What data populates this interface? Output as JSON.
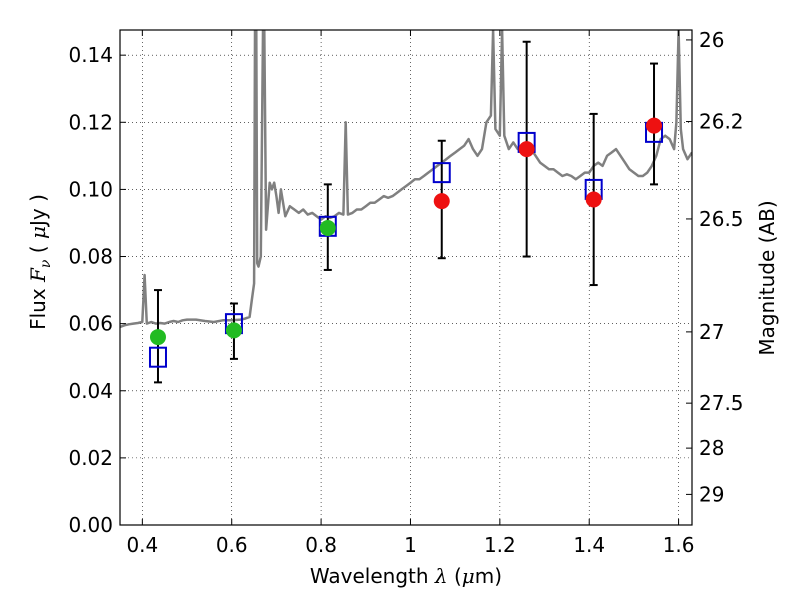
{
  "chart_data": {
    "type": "scatter",
    "title": "",
    "xlabel": "Wavelength",
    "xlabel_symbol": "λ",
    "xlabel_unit_open": "(",
    "xlabel_unit_mu": "μ",
    "xlabel_unit_rest": "m)",
    "ylabel": "Flux",
    "ylabel_symbol": "F",
    "ylabel_sub": "ν",
    "ylabel_unit_open": "(",
    "ylabel_unit_mu": "μ",
    "ylabel_unit_rest": "Jy )",
    "y2label": "Magnitude (AB)",
    "xlim": [
      0.35,
      1.63
    ],
    "ylim": [
      0.0,
      0.1475
    ],
    "grid": true,
    "xticks": [
      {
        "value": 0.4,
        "label": "0.4"
      },
      {
        "value": 0.6,
        "label": "0.6"
      },
      {
        "value": 0.8,
        "label": "0.8"
      },
      {
        "value": 1.0,
        "label": "1"
      },
      {
        "value": 1.2,
        "label": "1.2"
      },
      {
        "value": 1.4,
        "label": "1.4"
      },
      {
        "value": 1.6,
        "label": "1.6"
      }
    ],
    "yticks": [
      {
        "value": 0.0,
        "label": "0.00"
      },
      {
        "value": 0.02,
        "label": "0.02"
      },
      {
        "value": 0.04,
        "label": "0.04"
      },
      {
        "value": 0.06,
        "label": "0.06"
      },
      {
        "value": 0.08,
        "label": "0.08"
      },
      {
        "value": 0.1,
        "label": "0.10"
      },
      {
        "value": 0.12,
        "label": "0.12"
      },
      {
        "value": 0.14,
        "label": "0.14"
      }
    ],
    "y2ticks": [
      {
        "value": 26,
        "label": "26"
      },
      {
        "value": 26.2,
        "label": "26.2"
      },
      {
        "value": 26.5,
        "label": "26.5"
      },
      {
        "value": 27,
        "label": "27"
      },
      {
        "value": 27.5,
        "label": "27.5"
      },
      {
        "value": 28,
        "label": "28"
      },
      {
        "value": 29,
        "label": "29"
      }
    ],
    "colors": {
      "template": "#808080",
      "model": "#0000cc",
      "green": "#22bb22",
      "red": "#ee1111",
      "errorbar": "#000000"
    },
    "template_spectrum": [
      [
        0.35,
        0.059
      ],
      [
        0.36,
        0.0595
      ],
      [
        0.37,
        0.0598
      ],
      [
        0.38,
        0.06
      ],
      [
        0.39,
        0.0602
      ],
      [
        0.4,
        0.0605
      ],
      [
        0.405,
        0.0745
      ],
      [
        0.41,
        0.06
      ],
      [
        0.42,
        0.0605
      ],
      [
        0.43,
        0.06
      ],
      [
        0.44,
        0.0602
      ],
      [
        0.45,
        0.06
      ],
      [
        0.46,
        0.0605
      ],
      [
        0.47,
        0.0608
      ],
      [
        0.48,
        0.0605
      ],
      [
        0.49,
        0.061
      ],
      [
        0.5,
        0.0612
      ],
      [
        0.52,
        0.0612
      ],
      [
        0.54,
        0.0608
      ],
      [
        0.56,
        0.0605
      ],
      [
        0.58,
        0.061
      ],
      [
        0.6,
        0.061
      ],
      [
        0.62,
        0.0612
      ],
      [
        0.63,
        0.0615
      ],
      [
        0.64,
        0.062
      ],
      [
        0.645,
        0.067
      ],
      [
        0.65,
        0.072
      ],
      [
        0.652,
        0.1475
      ],
      [
        0.655,
        0.1475
      ],
      [
        0.657,
        0.078
      ],
      [
        0.66,
        0.077
      ],
      [
        0.665,
        0.08
      ],
      [
        0.67,
        0.1475
      ],
      [
        0.673,
        0.1475
      ],
      [
        0.677,
        0.088
      ],
      [
        0.685,
        0.102
      ],
      [
        0.69,
        0.1
      ],
      [
        0.695,
        0.102
      ],
      [
        0.7,
        0.098
      ],
      [
        0.705,
        0.093
      ],
      [
        0.71,
        0.1
      ],
      [
        0.72,
        0.092
      ],
      [
        0.73,
        0.095
      ],
      [
        0.74,
        0.094
      ],
      [
        0.75,
        0.093
      ],
      [
        0.76,
        0.094
      ],
      [
        0.77,
        0.0925
      ],
      [
        0.78,
        0.093
      ],
      [
        0.79,
        0.092
      ],
      [
        0.8,
        0.091
      ],
      [
        0.81,
        0.092
      ],
      [
        0.82,
        0.0915
      ],
      [
        0.83,
        0.092
      ],
      [
        0.84,
        0.093
      ],
      [
        0.85,
        0.0925
      ],
      [
        0.855,
        0.12
      ],
      [
        0.86,
        0.0925
      ],
      [
        0.87,
        0.093
      ],
      [
        0.88,
        0.094
      ],
      [
        0.89,
        0.094
      ],
      [
        0.9,
        0.095
      ],
      [
        0.91,
        0.096
      ],
      [
        0.92,
        0.096
      ],
      [
        0.93,
        0.097
      ],
      [
        0.94,
        0.098
      ],
      [
        0.95,
        0.0975
      ],
      [
        0.96,
        0.098
      ],
      [
        0.97,
        0.099
      ],
      [
        0.98,
        0.1
      ],
      [
        0.99,
        0.101
      ],
      [
        1.0,
        0.102
      ],
      [
        1.01,
        0.103
      ],
      [
        1.02,
        0.103
      ],
      [
        1.03,
        0.104
      ],
      [
        1.04,
        0.105
      ],
      [
        1.05,
        0.106
      ],
      [
        1.06,
        0.107
      ],
      [
        1.07,
        0.108
      ],
      [
        1.08,
        0.109
      ],
      [
        1.09,
        0.11
      ],
      [
        1.1,
        0.111
      ],
      [
        1.11,
        0.112
      ],
      [
        1.12,
        0.113
      ],
      [
        1.13,
        0.115
      ],
      [
        1.14,
        0.112
      ],
      [
        1.15,
        0.11
      ],
      [
        1.16,
        0.112
      ],
      [
        1.17,
        0.12
      ],
      [
        1.18,
        0.122
      ],
      [
        1.185,
        0.1475
      ],
      [
        1.19,
        0.118
      ],
      [
        1.2,
        0.116
      ],
      [
        1.205,
        0.1475
      ],
      [
        1.21,
        0.116
      ],
      [
        1.22,
        0.112
      ],
      [
        1.23,
        0.114
      ],
      [
        1.24,
        0.112
      ],
      [
        1.25,
        0.112
      ],
      [
        1.26,
        0.113
      ],
      [
        1.27,
        0.112
      ],
      [
        1.28,
        0.11
      ],
      [
        1.29,
        0.108
      ],
      [
        1.3,
        0.107
      ],
      [
        1.31,
        0.106
      ],
      [
        1.32,
        0.106
      ],
      [
        1.33,
        0.105
      ],
      [
        1.34,
        0.104
      ],
      [
        1.35,
        0.1045
      ],
      [
        1.36,
        0.104
      ],
      [
        1.37,
        0.103
      ],
      [
        1.38,
        0.104
      ],
      [
        1.39,
        0.105
      ],
      [
        1.4,
        0.105
      ],
      [
        1.41,
        0.107
      ],
      [
        1.42,
        0.108
      ],
      [
        1.43,
        0.107
      ],
      [
        1.44,
        0.11
      ],
      [
        1.45,
        0.111
      ],
      [
        1.46,
        0.112
      ],
      [
        1.47,
        0.11
      ],
      [
        1.48,
        0.108
      ],
      [
        1.49,
        0.106
      ],
      [
        1.5,
        0.105
      ],
      [
        1.51,
        0.104
      ],
      [
        1.52,
        0.104
      ],
      [
        1.53,
        0.105
      ],
      [
        1.54,
        0.107
      ],
      [
        1.55,
        0.11
      ],
      [
        1.56,
        0.115
      ],
      [
        1.57,
        0.116
      ],
      [
        1.58,
        0.115
      ],
      [
        1.59,
        0.112
      ],
      [
        1.595,
        0.12
      ],
      [
        1.6,
        0.1475
      ],
      [
        1.605,
        0.118
      ],
      [
        1.61,
        0.112
      ],
      [
        1.62,
        0.109
      ],
      [
        1.63,
        0.111
      ]
    ],
    "model_points": [
      {
        "x": 0.435,
        "y": 0.05
      },
      {
        "x": 0.605,
        "y": 0.06
      },
      {
        "x": 0.815,
        "y": 0.089
      },
      {
        "x": 1.07,
        "y": 0.105
      },
      {
        "x": 1.26,
        "y": 0.114
      },
      {
        "x": 1.41,
        "y": 0.1
      },
      {
        "x": 1.545,
        "y": 0.117
      }
    ],
    "measured_points": [
      {
        "x": 0.435,
        "y": 0.056,
        "ylow": 0.0425,
        "yhigh": 0.07,
        "color": "green"
      },
      {
        "x": 0.605,
        "y": 0.058,
        "ylow": 0.0495,
        "yhigh": 0.066,
        "color": "green"
      },
      {
        "x": 0.815,
        "y": 0.0885,
        "ylow": 0.076,
        "yhigh": 0.1015,
        "color": "green"
      },
      {
        "x": 1.07,
        "y": 0.0965,
        "ylow": 0.0795,
        "yhigh": 0.1145,
        "color": "red"
      },
      {
        "x": 1.26,
        "y": 0.112,
        "ylow": 0.08,
        "yhigh": 0.144,
        "color": "red"
      },
      {
        "x": 1.41,
        "y": 0.097,
        "ylow": 0.0715,
        "yhigh": 0.1225,
        "color": "red"
      },
      {
        "x": 1.545,
        "y": 0.119,
        "ylow": 0.1015,
        "yhigh": 0.1375,
        "color": "red"
      }
    ]
  }
}
